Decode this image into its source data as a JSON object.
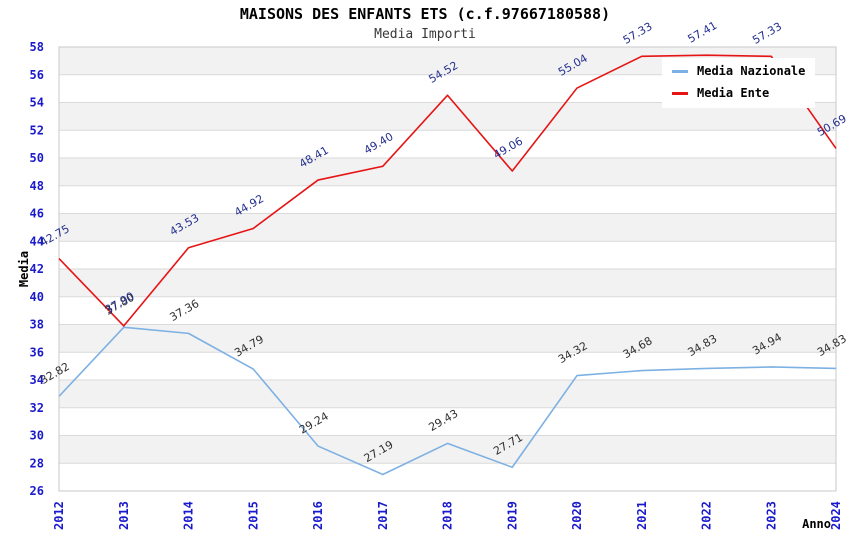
{
  "header": {
    "title": "MAISONS DES ENFANTS ETS (c.f.97667180588)",
    "subtitle": "Media Importi"
  },
  "legend": {
    "items": [
      {
        "label": "Media Nazionale",
        "color": "#7db1e3"
      },
      {
        "label": "Media Ente",
        "color": "#e61414"
      }
    ]
  },
  "chart_data": {
    "type": "line",
    "title": "MAISONS DES ENFANTS ETS (c.f.97667180588)",
    "subtitle": "Media Importi",
    "x": [
      2012,
      2013,
      2014,
      2015,
      2016,
      2017,
      2018,
      2019,
      2020,
      2021,
      2022,
      2023,
      2024
    ],
    "xlabel": "Anno",
    "ylabel": "Media",
    "ylim": [
      26,
      58
    ],
    "ytick_step": 2,
    "grid": "horizontal",
    "legend_position": "top-right",
    "series": [
      {
        "name": "Media Nazionale",
        "color": "#7db1e3",
        "label_color": "#303030",
        "values": [
          32.82,
          37.8,
          37.36,
          34.79,
          29.24,
          27.19,
          29.43,
          27.71,
          34.32,
          34.68,
          34.83,
          34.94,
          34.83
        ]
      },
      {
        "name": "Media Ente",
        "color": "#e61414",
        "label_color": "#232e8e",
        "values": [
          42.75,
          37.9,
          43.53,
          44.92,
          48.41,
          49.4,
          54.52,
          49.06,
          55.04,
          57.33,
          57.41,
          57.33,
          50.69
        ]
      }
    ],
    "style": {
      "axis_tick_color": "#1a1acd",
      "band_color": "#f2f2f2",
      "grid_color": "#dadada",
      "border_color": "#c9c9c9",
      "axis_title_color": "#000000"
    }
  }
}
